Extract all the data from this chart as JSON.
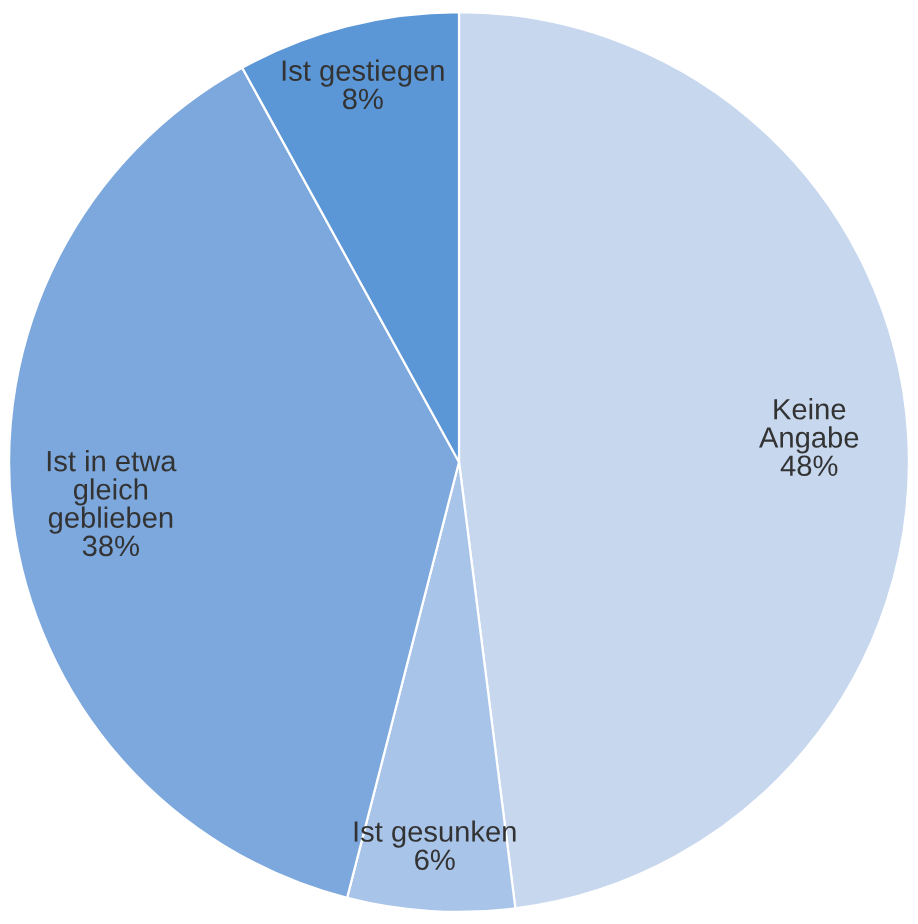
{
  "chart_data": {
    "type": "pie",
    "categories": [
      "Keine\nAngabe",
      "Ist gesunken",
      "Ist in etwa\ngleich\ngeblieben",
      "Ist gestiegen"
    ],
    "values": [
      48,
      6,
      38,
      8
    ],
    "value_labels": [
      "48%",
      "6%",
      "38%",
      "8%"
    ],
    "colors": [
      "#c6d7ee",
      "#a8c4e9",
      "#7ca8dd",
      "#5b96d6"
    ]
  }
}
